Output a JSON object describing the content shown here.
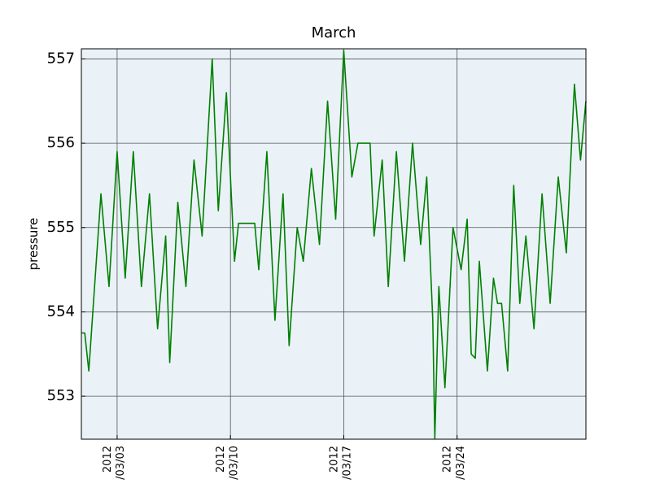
{
  "chart_data": {
    "type": "line",
    "title": "March",
    "ylabel": "pressure",
    "xlim": [
      "2012-02-29T19:00",
      "2012-03-31T23:00"
    ],
    "ylim": [
      552.49,
      557.12
    ],
    "yticks": [
      553,
      554,
      555,
      556,
      557
    ],
    "xticks": [
      {
        "value": "2012-03-03T00:00",
        "label": "2012\n/03/03"
      },
      {
        "value": "2012-03-10T00:00",
        "label": "2012\n/03/10"
      },
      {
        "value": "2012-03-17T00:00",
        "label": "2012\n/03/17"
      },
      {
        "value": "2012-03-24T00:00",
        "label": "2012\n/03/24"
      }
    ],
    "grid": true,
    "x": [
      "2012-02-29T19:00",
      "2012-03-01T00:00",
      "2012-03-01T06:00",
      "2012-03-01T12:00",
      "2012-03-02T00:00",
      "2012-03-02T12:00",
      "2012-03-03T00:00",
      "2012-03-03T12:00",
      "2012-03-04T00:00",
      "2012-03-04T12:00",
      "2012-03-05T00:00",
      "2012-03-05T12:00",
      "2012-03-06T00:00",
      "2012-03-06T06:00",
      "2012-03-06T18:00",
      "2012-03-07T06:00",
      "2012-03-07T18:00",
      "2012-03-08T06:00",
      "2012-03-08T21:00",
      "2012-03-09T06:00",
      "2012-03-09T18:00",
      "2012-03-10T06:00",
      "2012-03-10T12:00",
      "2012-03-11T12:00",
      "2012-03-11T18:00",
      "2012-03-12T06:00",
      "2012-03-12T18:00",
      "2012-03-13T06:00",
      "2012-03-13T15:00",
      "2012-03-14T03:00",
      "2012-03-14T12:00",
      "2012-03-15T00:00",
      "2012-03-15T12:00",
      "2012-03-16T00:00",
      "2012-03-16T12:00",
      "2012-03-17T00:00",
      "2012-03-17T12:00",
      "2012-03-17T21:00",
      "2012-03-18T15:00",
      "2012-03-18T21:00",
      "2012-03-19T09:00",
      "2012-03-19T18:00",
      "2012-03-20T06:00",
      "2012-03-20T18:00",
      "2012-03-21T06:00",
      "2012-03-21T18:00",
      "2012-03-22T03:00",
      "2012-03-22T12:00",
      "2012-03-22T15:00",
      "2012-03-22T21:00",
      "2012-03-23T06:00",
      "2012-03-23T18:00",
      "2012-03-24T06:00",
      "2012-03-24T15:00",
      "2012-03-24T21:00",
      "2012-03-25T03:00",
      "2012-03-25T09:00",
      "2012-03-25T21:00",
      "2012-03-26T06:00",
      "2012-03-26T12:00",
      "2012-03-26T18:00",
      "2012-03-27T03:00",
      "2012-03-27T12:00",
      "2012-03-27T21:00",
      "2012-03-28T06:00",
      "2012-03-28T18:00",
      "2012-03-29T06:00",
      "2012-03-29T18:00",
      "2012-03-30T06:00",
      "2012-03-30T18:00",
      "2012-03-31T06:00",
      "2012-03-31T15:00",
      "2012-03-31T23:00"
    ],
    "series": [
      {
        "color": "#008000",
        "values": [
          553.75,
          553.75,
          553.3,
          554.0,
          555.4,
          554.3,
          555.9,
          554.4,
          555.9,
          554.3,
          555.4,
          553.8,
          554.9,
          553.4,
          555.3,
          554.3,
          555.8,
          554.9,
          557.0,
          555.2,
          556.6,
          554.6,
          555.05,
          555.05,
          554.5,
          555.9,
          553.9,
          555.4,
          553.6,
          555.0,
          554.6,
          555.7,
          554.8,
          556.5,
          555.1,
          557.1,
          555.6,
          556.0,
          556.0,
          554.9,
          555.8,
          554.3,
          555.9,
          554.6,
          556.0,
          554.8,
          555.6,
          553.9,
          552.5,
          554.3,
          553.1,
          555.0,
          554.5,
          555.1,
          553.5,
          553.45,
          554.6,
          553.3,
          554.4,
          554.1,
          554.1,
          553.3,
          555.5,
          554.1,
          554.9,
          553.8,
          555.4,
          554.1,
          555.6,
          554.7,
          556.7,
          555.8,
          556.5
        ]
      }
    ]
  }
}
